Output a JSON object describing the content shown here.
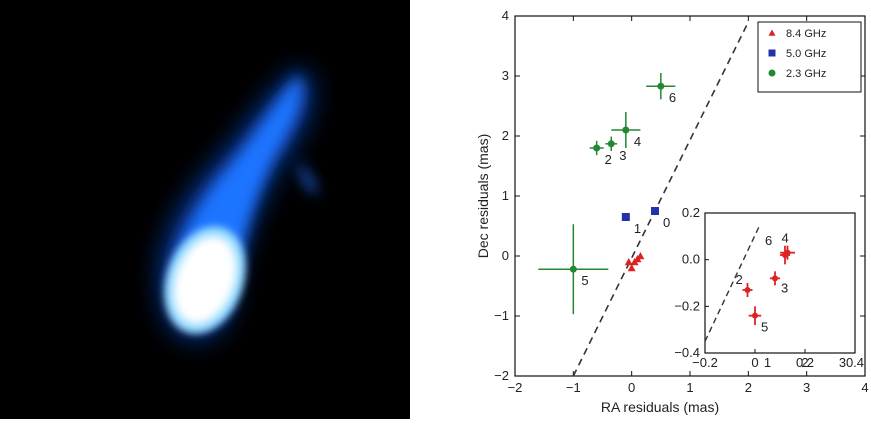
{
  "chart_data": [
    {
      "type": "scatter",
      "title": "",
      "xlabel": "RA residuals (mas)",
      "ylabel": "Dec residuals (mas)",
      "xlim": [
        -2,
        4
      ],
      "ylim": [
        -2,
        4
      ],
      "xticks": [
        "−2",
        "−1",
        "0",
        "1",
        "2",
        "3",
        "4"
      ],
      "yticks": [
        "−2",
        "−1",
        "0",
        "1",
        "2",
        "3",
        "4"
      ],
      "grid": false,
      "legend": "top-right",
      "reference_line": {
        "style": "dashed",
        "color": "#333333",
        "points": [
          [
            -1.0,
            -2.0
          ],
          [
            2.0,
            3.9
          ]
        ]
      },
      "series": [
        {
          "name": "8.4 GHz",
          "marker": "triangle",
          "color": "#dd2222",
          "points": [
            {
              "x": 0.0,
              "y": -0.2
            },
            {
              "x": 0.05,
              "y": -0.1
            },
            {
              "x": 0.1,
              "y": -0.05
            },
            {
              "x": 0.15,
              "y": 0.0
            },
            {
              "x": -0.05,
              "y": -0.1
            }
          ]
        },
        {
          "name": "5.0 GHz",
          "marker": "square",
          "color": "#2233aa",
          "points": [
            {
              "x": -0.1,
              "y": 0.65,
              "label": "1"
            },
            {
              "x": 0.4,
              "y": 0.75,
              "label": "0"
            }
          ]
        },
        {
          "name": "2.3 GHz",
          "marker": "circle",
          "color": "#228833",
          "points": [
            {
              "x": -0.1,
              "y": 2.1,
              "xerr": 0.25,
              "yerr": 0.3,
              "label": "4"
            },
            {
              "x": -0.35,
              "y": 1.87,
              "xerr": 0.1,
              "yerr": 0.12,
              "label": "3"
            },
            {
              "x": -0.6,
              "y": 1.8,
              "xerr": 0.12,
              "yerr": 0.12,
              "label": "2"
            },
            {
              "x": 0.5,
              "y": 2.83,
              "xerr": 0.25,
              "yerr": 0.22,
              "label": "6"
            },
            {
              "x": -1.0,
              "y": -0.22,
              "xerr": 0.6,
              "yerr": 0.75,
              "label": "5"
            }
          ]
        }
      ]
    },
    {
      "type": "scatter",
      "title": "",
      "xlim": [
        -0.2,
        0.4
      ],
      "ylim": [
        -0.4,
        0.2
      ],
      "xticks": [
        "−0.2",
        "0",
        "0.2",
        "0.4"
      ],
      "yticks": [
        "−0.4",
        "−0.2",
        "0.0",
        "0.2"
      ],
      "minor_xticks": [
        "1",
        "2",
        "3"
      ],
      "reference_line": {
        "style": "dashed",
        "color": "#333333",
        "points": [
          [
            -0.2,
            -0.35
          ],
          [
            0.02,
            0.15
          ]
        ]
      },
      "series": [
        {
          "name": "8.4 GHz",
          "marker": "plus",
          "color": "#dd2222",
          "points": [
            {
              "x": -0.03,
              "y": -0.13,
              "xerr": 0.02,
              "yerr": 0.03,
              "label": "2"
            },
            {
              "x": 0.0,
              "y": -0.24,
              "xerr": 0.025,
              "yerr": 0.04,
              "label": "5"
            },
            {
              "x": 0.08,
              "y": -0.08,
              "xerr": 0.02,
              "yerr": 0.03,
              "label": "3"
            },
            {
              "x": 0.13,
              "y": 0.03,
              "xerr": 0.03,
              "yerr": 0.03,
              "label": "4"
            },
            {
              "x": 0.12,
              "y": 0.02,
              "xerr": 0.02,
              "yerr": 0.04,
              "label": "6"
            }
          ]
        }
      ]
    }
  ]
}
